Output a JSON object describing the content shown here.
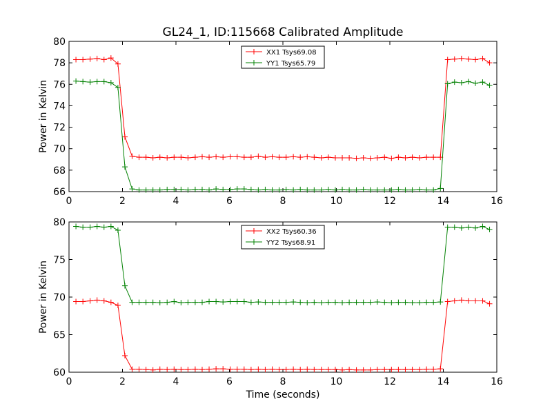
{
  "chart_data": {
    "title": "GL24_1, ID:115668 Calibrated Amplitude",
    "xlabel": "Time (seconds)",
    "x": [
      0.26,
      0.52,
      0.79,
      1.05,
      1.31,
      1.57,
      1.83,
      2.09,
      2.36,
      2.62,
      2.88,
      3.14,
      3.4,
      3.67,
      3.93,
      4.19,
      4.45,
      4.72,
      4.98,
      5.24,
      5.5,
      5.76,
      6.03,
      6.29,
      6.55,
      6.81,
      7.08,
      7.34,
      7.6,
      7.86,
      8.12,
      8.39,
      8.65,
      8.91,
      9.17,
      9.44,
      9.7,
      9.96,
      10.22,
      10.48,
      10.75,
      11.01,
      11.27,
      11.53,
      11.8,
      12.06,
      12.32,
      12.58,
      12.84,
      13.11,
      13.37,
      13.63,
      13.89,
      14.16,
      14.42,
      14.68,
      14.94,
      15.2,
      15.47,
      15.73
    ],
    "panels": [
      {
        "type": "line",
        "ylabel": "Power in Kelvin",
        "xlim": [
          0,
          16
        ],
        "ylim": [
          66,
          80
        ],
        "xticks": [
          0,
          2,
          4,
          6,
          8,
          10,
          12,
          14,
          16
        ],
        "yticks": [
          66,
          68,
          70,
          72,
          74,
          76,
          78,
          80
        ],
        "legend_position": "top-center",
        "series": [
          {
            "name": "XX1 Tsys69.08",
            "color": "#ff0000",
            "values": [
              78.3,
              78.3,
              78.35,
              78.4,
              78.3,
              78.45,
              77.9,
              71.1,
              69.3,
              69.2,
              69.2,
              69.15,
              69.2,
              69.15,
              69.2,
              69.2,
              69.15,
              69.2,
              69.25,
              69.2,
              69.25,
              69.2,
              69.25,
              69.25,
              69.2,
              69.2,
              69.3,
              69.2,
              69.25,
              69.2,
              69.2,
              69.25,
              69.2,
              69.25,
              69.2,
              69.15,
              69.2,
              69.15,
              69.15,
              69.15,
              69.1,
              69.15,
              69.1,
              69.15,
              69.2,
              69.1,
              69.2,
              69.15,
              69.2,
              69.15,
              69.2,
              69.2,
              69.2,
              78.3,
              78.35,
              78.4,
              78.35,
              78.3,
              78.4,
              78.0
            ]
          },
          {
            "name": "YY1 Tsys65.79",
            "color": "#008000",
            "values": [
              76.3,
              76.25,
              76.2,
              76.25,
              76.25,
              76.15,
              75.7,
              68.3,
              66.25,
              66.15,
              66.15,
              66.15,
              66.15,
              66.2,
              66.2,
              66.2,
              66.15,
              66.2,
              66.2,
              66.15,
              66.25,
              66.2,
              66.2,
              66.25,
              66.25,
              66.2,
              66.15,
              66.2,
              66.15,
              66.15,
              66.2,
              66.15,
              66.2,
              66.15,
              66.15,
              66.15,
              66.2,
              66.15,
              66.2,
              66.15,
              66.15,
              66.2,
              66.15,
              66.15,
              66.15,
              66.15,
              66.2,
              66.15,
              66.15,
              66.2,
              66.15,
              66.15,
              66.3,
              76.05,
              76.2,
              76.15,
              76.25,
              76.1,
              76.2,
              75.9
            ]
          }
        ]
      },
      {
        "type": "line",
        "ylabel": "Power in Kelvin",
        "xlabel": "Time (seconds)",
        "xlim": [
          0,
          16
        ],
        "ylim": [
          60,
          80
        ],
        "xticks": [
          0,
          2,
          4,
          6,
          8,
          10,
          12,
          14,
          16
        ],
        "yticks": [
          60,
          65,
          70,
          75,
          80
        ],
        "legend_position": "top-center",
        "series": [
          {
            "name": "XX2 Tsys60.36",
            "color": "#ff0000",
            "values": [
              69.4,
              69.4,
              69.5,
              69.6,
              69.5,
              69.3,
              68.9,
              62.2,
              60.4,
              60.4,
              60.35,
              60.3,
              60.4,
              60.35,
              60.4,
              60.35,
              60.35,
              60.4,
              60.35,
              60.4,
              60.45,
              60.45,
              60.4,
              60.4,
              60.4,
              60.35,
              60.4,
              60.35,
              60.4,
              60.35,
              60.35,
              60.4,
              60.35,
              60.4,
              60.35,
              60.35,
              60.35,
              60.35,
              60.3,
              60.35,
              60.3,
              60.3,
              60.3,
              60.35,
              60.35,
              60.35,
              60.35,
              60.35,
              60.35,
              60.35,
              60.4,
              60.4,
              60.45,
              69.4,
              69.5,
              69.6,
              69.5,
              69.5,
              69.5,
              69.1
            ]
          },
          {
            "name": "YY2 Tsys68.91",
            "color": "#008000",
            "values": [
              79.4,
              79.3,
              79.3,
              79.4,
              79.3,
              79.4,
              78.9,
              71.5,
              69.3,
              69.3,
              69.3,
              69.3,
              69.25,
              69.3,
              69.4,
              69.25,
              69.3,
              69.3,
              69.3,
              69.4,
              69.4,
              69.35,
              69.4,
              69.4,
              69.4,
              69.3,
              69.35,
              69.3,
              69.3,
              69.3,
              69.3,
              69.35,
              69.3,
              69.25,
              69.3,
              69.25,
              69.3,
              69.3,
              69.25,
              69.3,
              69.3,
              69.3,
              69.3,
              69.35,
              69.3,
              69.25,
              69.3,
              69.3,
              69.25,
              69.25,
              69.3,
              69.3,
              69.35,
              79.3,
              79.3,
              79.2,
              79.3,
              79.2,
              79.4,
              79.0
            ]
          }
        ]
      }
    ]
  }
}
